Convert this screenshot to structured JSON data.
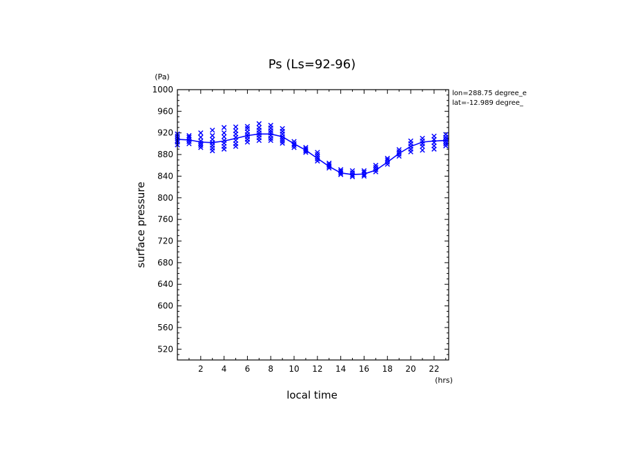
{
  "chart_data": {
    "type": "line",
    "title": "Ps (Ls=92-96)",
    "xlabel": "local time",
    "ylabel": "surface pressure",
    "x_unit": "(hrs)",
    "y_unit": "(Pa)",
    "xlim": [
      0,
      23.25
    ],
    "ylim": [
      500,
      1000
    ],
    "x_ticks": [
      2,
      4,
      6,
      8,
      10,
      12,
      14,
      16,
      18,
      20,
      22
    ],
    "y_ticks": [
      520,
      560,
      600,
      640,
      680,
      720,
      760,
      800,
      840,
      880,
      920,
      960,
      1000
    ],
    "grid": false,
    "annotations": [
      "lon=288.75 degree_e",
      "lat=-12.989 degree_"
    ],
    "colors": {
      "series": "#0000ff",
      "axes": "#000000"
    },
    "series": [
      {
        "type": "line",
        "x": [
          0,
          1,
          2,
          3,
          4,
          5,
          6,
          7,
          8,
          9,
          10,
          11,
          12,
          13,
          14,
          15,
          16,
          17,
          18,
          19,
          20,
          21,
          22,
          23,
          23.25
        ],
        "values": [
          908,
          907,
          903,
          902,
          905,
          910,
          915,
          918,
          918,
          913,
          900,
          888,
          873,
          858,
          846,
          843,
          844,
          851,
          866,
          882,
          895,
          903,
          905,
          906,
          907
        ]
      },
      {
        "type": "scatter",
        "marker": "x",
        "points": [
          [
            0,
            898
          ],
          [
            0,
            903
          ],
          [
            0,
            906
          ],
          [
            0,
            910
          ],
          [
            0,
            914
          ],
          [
            0,
            918
          ],
          [
            1,
            900
          ],
          [
            1,
            904
          ],
          [
            1,
            908
          ],
          [
            1,
            912
          ],
          [
            1,
            915
          ],
          [
            2,
            893
          ],
          [
            2,
            897
          ],
          [
            2,
            901
          ],
          [
            2,
            905
          ],
          [
            2,
            912
          ],
          [
            2,
            920
          ],
          [
            3,
            887
          ],
          [
            3,
            892
          ],
          [
            3,
            897
          ],
          [
            3,
            902
          ],
          [
            3,
            908
          ],
          [
            3,
            915
          ],
          [
            3,
            925
          ],
          [
            4,
            890
          ],
          [
            4,
            895
          ],
          [
            4,
            901
          ],
          [
            4,
            906
          ],
          [
            4,
            913
          ],
          [
            4,
            920
          ],
          [
            4,
            930
          ],
          [
            5,
            895
          ],
          [
            5,
            900
          ],
          [
            5,
            906
          ],
          [
            5,
            912
          ],
          [
            5,
            918
          ],
          [
            5,
            924
          ],
          [
            5,
            931
          ],
          [
            6,
            903
          ],
          [
            6,
            908
          ],
          [
            6,
            913
          ],
          [
            6,
            917
          ],
          [
            6,
            922
          ],
          [
            6,
            928
          ],
          [
            6,
            932
          ],
          [
            7,
            906
          ],
          [
            7,
            911
          ],
          [
            7,
            916
          ],
          [
            7,
            920
          ],
          [
            7,
            925
          ],
          [
            7,
            930
          ],
          [
            7,
            937
          ],
          [
            8,
            906
          ],
          [
            8,
            910
          ],
          [
            8,
            915
          ],
          [
            8,
            920
          ],
          [
            8,
            924
          ],
          [
            8,
            929
          ],
          [
            8,
            934
          ],
          [
            9,
            901
          ],
          [
            9,
            905
          ],
          [
            9,
            909
          ],
          [
            9,
            913
          ],
          [
            9,
            918
          ],
          [
            9,
            923
          ],
          [
            9,
            928
          ],
          [
            10,
            893
          ],
          [
            10,
            897
          ],
          [
            10,
            900
          ],
          [
            10,
            904
          ],
          [
            11,
            884
          ],
          [
            11,
            887
          ],
          [
            11,
            890
          ],
          [
            11,
            893
          ],
          [
            12,
            868
          ],
          [
            12,
            872
          ],
          [
            12,
            876
          ],
          [
            12,
            880
          ],
          [
            12,
            884
          ],
          [
            13,
            855
          ],
          [
            13,
            858
          ],
          [
            13,
            861
          ],
          [
            13,
            864
          ],
          [
            14,
            843
          ],
          [
            14,
            846
          ],
          [
            14,
            849
          ],
          [
            14,
            852
          ],
          [
            15,
            839
          ],
          [
            15,
            842
          ],
          [
            15,
            846
          ],
          [
            15,
            850
          ],
          [
            16,
            840
          ],
          [
            16,
            843
          ],
          [
            16,
            847
          ],
          [
            16,
            850
          ],
          [
            17,
            848
          ],
          [
            17,
            852
          ],
          [
            17,
            856
          ],
          [
            17,
            860
          ],
          [
            18,
            862
          ],
          [
            18,
            866
          ],
          [
            18,
            870
          ],
          [
            18,
            873
          ],
          [
            19,
            877
          ],
          [
            19,
            881
          ],
          [
            19,
            885
          ],
          [
            19,
            889
          ],
          [
            20,
            885
          ],
          [
            20,
            890
          ],
          [
            20,
            895
          ],
          [
            20,
            900
          ],
          [
            20,
            905
          ],
          [
            21,
            888
          ],
          [
            21,
            895
          ],
          [
            21,
            900
          ],
          [
            21,
            905
          ],
          [
            21,
            910
          ],
          [
            22,
            890
          ],
          [
            22,
            896
          ],
          [
            22,
            902
          ],
          [
            22,
            908
          ],
          [
            22,
            914
          ],
          [
            23,
            896
          ],
          [
            23,
            900
          ],
          [
            23,
            904
          ],
          [
            23,
            908
          ],
          [
            23,
            912
          ],
          [
            23,
            917
          ]
        ]
      }
    ]
  }
}
